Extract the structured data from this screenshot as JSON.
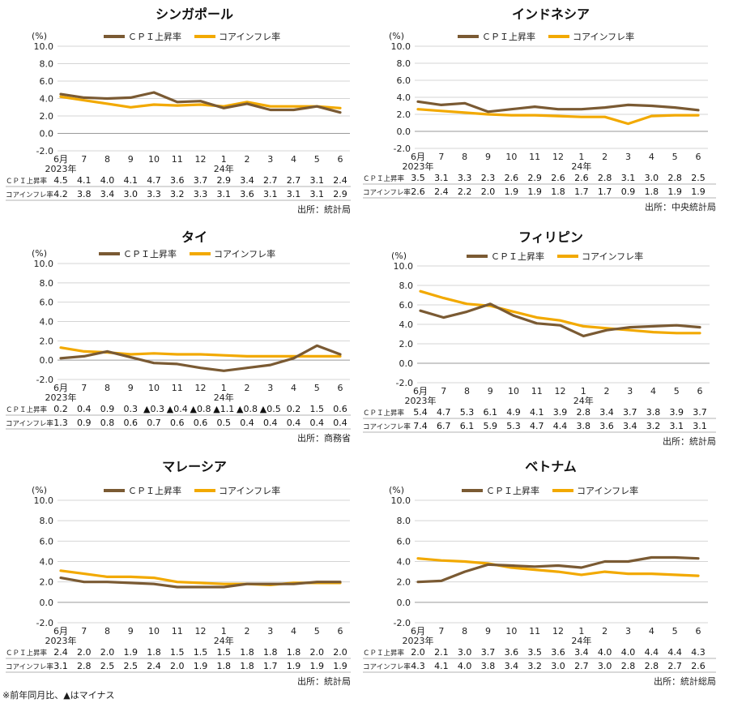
{
  "footnote": "※前年同月比、▲はマイナス",
  "legend": {
    "cpi": "ＣＰＩ上昇率",
    "core": "コアインフレ率"
  },
  "row_labels": {
    "cpi": "ＣＰＩ上昇率",
    "core": "コアインフレ率"
  },
  "unit_label": "(%)",
  "colors": {
    "cpi": "#7a5a33",
    "core": "#f2a900",
    "grid": "#d4d4d4",
    "axis": "#333333"
  },
  "chart_data": [
    {
      "type": "line",
      "title": "シンガポール",
      "source": "出所：統計局",
      "ylim": [
        -2,
        10
      ],
      "yticks": [
        "10.0",
        "8.0",
        "6.0",
        "4.0",
        "2.0",
        "0.0",
        "-2.0"
      ],
      "x": [
        "6月",
        "7",
        "8",
        "9",
        "10",
        "11",
        "12",
        "1",
        "2",
        "3",
        "4",
        "5",
        "6"
      ],
      "year_labels": [
        {
          "index": 0,
          "text": "2023年"
        },
        {
          "index": 7,
          "text": "24年"
        }
      ],
      "series": [
        {
          "key": "cpi",
          "name": "ＣＰＩ上昇率",
          "values": [
            4.5,
            4.1,
            4.0,
            4.1,
            4.7,
            3.6,
            3.7,
            2.9,
            3.4,
            2.7,
            2.7,
            3.1,
            2.4
          ],
          "labels": [
            "4.5",
            "4.1",
            "4.0",
            "4.1",
            "4.7",
            "3.6",
            "3.7",
            "2.9",
            "3.4",
            "2.7",
            "2.7",
            "3.1",
            "2.4"
          ]
        },
        {
          "key": "core",
          "name": "コアインフレ率",
          "values": [
            4.2,
            3.8,
            3.4,
            3.0,
            3.3,
            3.2,
            3.3,
            3.1,
            3.6,
            3.1,
            3.1,
            3.1,
            2.9
          ],
          "labels": [
            "4.2",
            "3.8",
            "3.4",
            "3.0",
            "3.3",
            "3.2",
            "3.3",
            "3.1",
            "3.6",
            "3.1",
            "3.1",
            "3.1",
            "2.9"
          ]
        }
      ]
    },
    {
      "type": "line",
      "title": "インドネシア",
      "source": "出所：中央統計局",
      "ylim": [
        -2,
        10
      ],
      "yticks": [
        "10.0",
        "8.0",
        "6.0",
        "4.0",
        "2.0",
        "0.0",
        "-2.0"
      ],
      "x": [
        "6月",
        "7",
        "8",
        "9",
        "10",
        "11",
        "12",
        "1",
        "2",
        "3",
        "4",
        "5",
        "6"
      ],
      "year_labels": [
        {
          "index": 0,
          "text": "2023年"
        },
        {
          "index": 7,
          "text": "24年"
        }
      ],
      "series": [
        {
          "key": "cpi",
          "name": "ＣＰＩ上昇率",
          "values": [
            3.5,
            3.1,
            3.3,
            2.3,
            2.6,
            2.9,
            2.6,
            2.6,
            2.8,
            3.1,
            3.0,
            2.8,
            2.5
          ],
          "labels": [
            "3.5",
            "3.1",
            "3.3",
            "2.3",
            "2.6",
            "2.9",
            "2.6",
            "2.6",
            "2.8",
            "3.1",
            "3.0",
            "2.8",
            "2.5"
          ]
        },
        {
          "key": "core",
          "name": "コアインフレ率",
          "values": [
            2.6,
            2.4,
            2.2,
            2.0,
            1.9,
            1.9,
            1.8,
            1.7,
            1.7,
            0.9,
            1.8,
            1.9,
            1.9
          ],
          "labels": [
            "2.6",
            "2.4",
            "2.2",
            "2.0",
            "1.9",
            "1.9",
            "1.8",
            "1.7",
            "1.7",
            "0.9",
            "1.8",
            "1.9",
            "1.9"
          ]
        }
      ]
    },
    {
      "type": "line",
      "title": "タイ",
      "source": "出所：商務省",
      "ylim": [
        -2,
        10
      ],
      "yticks": [
        "10.0",
        "8.0",
        "6.0",
        "4.0",
        "2.0",
        "0.0",
        "-2.0"
      ],
      "x": [
        "6月",
        "7",
        "8",
        "9",
        "10",
        "11",
        "12",
        "1",
        "2",
        "3",
        "4",
        "5",
        "6"
      ],
      "year_labels": [
        {
          "index": 0,
          "text": "2023年"
        },
        {
          "index": 7,
          "text": "24年"
        }
      ],
      "series": [
        {
          "key": "cpi",
          "name": "ＣＰＩ上昇率",
          "values": [
            0.2,
            0.4,
            0.9,
            0.3,
            -0.3,
            -0.4,
            -0.8,
            -1.1,
            -0.8,
            -0.5,
            0.2,
            1.5,
            0.6
          ],
          "labels": [
            "0.2",
            "0.4",
            "0.9",
            "0.3",
            "▲0.3",
            "▲0.4",
            "▲0.8",
            "▲1.1",
            "▲0.8",
            "▲0.5",
            "0.2",
            "1.5",
            "0.6"
          ]
        },
        {
          "key": "core",
          "name": "コアインフレ率",
          "values": [
            1.3,
            0.9,
            0.8,
            0.6,
            0.7,
            0.6,
            0.6,
            0.5,
            0.4,
            0.4,
            0.4,
            0.4,
            0.4
          ],
          "labels": [
            "1.3",
            "0.9",
            "0.8",
            "0.6",
            "0.7",
            "0.6",
            "0.6",
            "0.5",
            "0.4",
            "0.4",
            "0.4",
            "0.4",
            "0.4"
          ]
        }
      ]
    },
    {
      "type": "line",
      "title": "フィリピン",
      "source": "出所：統計局",
      "ylim": [
        -2,
        10
      ],
      "yticks": [
        "10.0",
        "8.0",
        "6.0",
        "4.0",
        "2.0",
        "0.0",
        "-2.0"
      ],
      "x": [
        "6月",
        "7",
        "8",
        "9",
        "10",
        "11",
        "12",
        "1",
        "2",
        "3",
        "4",
        "5",
        "6"
      ],
      "year_labels": [
        {
          "index": 0,
          "text": "2023年"
        },
        {
          "index": 7,
          "text": "24年"
        }
      ],
      "series": [
        {
          "key": "cpi",
          "name": "ＣＰＩ上昇率",
          "values": [
            5.4,
            4.7,
            5.3,
            6.1,
            4.9,
            4.1,
            3.9,
            2.8,
            3.4,
            3.7,
            3.8,
            3.9,
            3.7
          ],
          "labels": [
            "5.4",
            "4.7",
            "5.3",
            "6.1",
            "4.9",
            "4.1",
            "3.9",
            "2.8",
            "3.4",
            "3.7",
            "3.8",
            "3.9",
            "3.7"
          ]
        },
        {
          "key": "core",
          "name": "コアインフレ率",
          "values": [
            7.4,
            6.7,
            6.1,
            5.9,
            5.3,
            4.7,
            4.4,
            3.8,
            3.6,
            3.4,
            3.2,
            3.1,
            3.1
          ],
          "labels": [
            "7.4",
            "6.7",
            "6.1",
            "5.9",
            "5.3",
            "4.7",
            "4.4",
            "3.8",
            "3.6",
            "3.4",
            "3.2",
            "3.1",
            "3.1"
          ]
        }
      ]
    },
    {
      "type": "line",
      "title": "マレーシア",
      "source": "出所：統計局",
      "ylim": [
        -2,
        10
      ],
      "yticks": [
        "10.0",
        "8.0",
        "6.0",
        "4.0",
        "2.0",
        "0.0",
        "-2.0"
      ],
      "x": [
        "6月",
        "7",
        "8",
        "9",
        "10",
        "11",
        "12",
        "1",
        "2",
        "3",
        "4",
        "5",
        "6"
      ],
      "year_labels": [
        {
          "index": 0,
          "text": "2023年"
        },
        {
          "index": 7,
          "text": "24年"
        }
      ],
      "series": [
        {
          "key": "cpi",
          "name": "ＣＰＩ上昇率",
          "values": [
            2.4,
            2.0,
            2.0,
            1.9,
            1.8,
            1.5,
            1.5,
            1.5,
            1.8,
            1.8,
            1.8,
            2.0,
            2.0
          ],
          "labels": [
            "2.4",
            "2.0",
            "2.0",
            "1.9",
            "1.8",
            "1.5",
            "1.5",
            "1.5",
            "1.8",
            "1.8",
            "1.8",
            "2.0",
            "2.0"
          ]
        },
        {
          "key": "core",
          "name": "コアインフレ率",
          "values": [
            3.1,
            2.8,
            2.5,
            2.5,
            2.4,
            2.0,
            1.9,
            1.8,
            1.8,
            1.7,
            1.9,
            1.9,
            1.9
          ],
          "labels": [
            "3.1",
            "2.8",
            "2.5",
            "2.5",
            "2.4",
            "2.0",
            "1.9",
            "1.8",
            "1.8",
            "1.7",
            "1.9",
            "1.9",
            "1.9"
          ]
        }
      ]
    },
    {
      "type": "line",
      "title": "ベトナム",
      "source": "出所：統計総局",
      "ylim": [
        -2,
        10
      ],
      "yticks": [
        "10.0",
        "8.0",
        "6.0",
        "4.0",
        "2.0",
        "0.0",
        "-2.0"
      ],
      "x": [
        "6月",
        "7",
        "8",
        "9",
        "10",
        "11",
        "12",
        "1",
        "2",
        "3",
        "4",
        "5",
        "6"
      ],
      "year_labels": [
        {
          "index": 0,
          "text": "2023年"
        },
        {
          "index": 7,
          "text": "24年"
        }
      ],
      "series": [
        {
          "key": "cpi",
          "name": "ＣＰＩ上昇率",
          "values": [
            2.0,
            2.1,
            3.0,
            3.7,
            3.6,
            3.5,
            3.6,
            3.4,
            4.0,
            4.0,
            4.4,
            4.4,
            4.3
          ],
          "labels": [
            "2.0",
            "2.1",
            "3.0",
            "3.7",
            "3.6",
            "3.5",
            "3.6",
            "3.4",
            "4.0",
            "4.0",
            "4.4",
            "4.4",
            "4.3"
          ]
        },
        {
          "key": "core",
          "name": "コアインフレ率",
          "values": [
            4.3,
            4.1,
            4.0,
            3.8,
            3.4,
            3.2,
            3.0,
            2.7,
            3.0,
            2.8,
            2.8,
            2.7,
            2.6
          ],
          "labels": [
            "4.3",
            "4.1",
            "4.0",
            "3.8",
            "3.4",
            "3.2",
            "3.0",
            "2.7",
            "3.0",
            "2.8",
            "2.8",
            "2.7",
            "2.6"
          ]
        }
      ]
    }
  ]
}
